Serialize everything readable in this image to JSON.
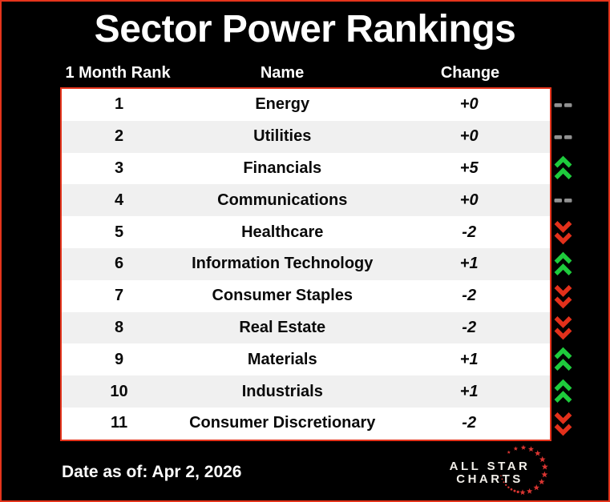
{
  "title": "Sector Power Rankings",
  "columns": {
    "rank": "1 Month Rank",
    "name": "Name",
    "change": "Change"
  },
  "rows": [
    {
      "rank": "1",
      "name": "Energy",
      "change": "+0",
      "direction": "flat"
    },
    {
      "rank": "2",
      "name": "Utilities",
      "change": "+0",
      "direction": "flat"
    },
    {
      "rank": "3",
      "name": "Financials",
      "change": "+5",
      "direction": "up"
    },
    {
      "rank": "4",
      "name": "Communications",
      "change": "+0",
      "direction": "flat"
    },
    {
      "rank": "5",
      "name": "Healthcare",
      "change": "-2",
      "direction": "down"
    },
    {
      "rank": "6",
      "name": "Information Technology",
      "change": "+1",
      "direction": "up"
    },
    {
      "rank": "7",
      "name": "Consumer Staples",
      "change": "-2",
      "direction": "down"
    },
    {
      "rank": "8",
      "name": "Real Estate",
      "change": "-2",
      "direction": "down"
    },
    {
      "rank": "9",
      "name": "Materials",
      "change": "+1",
      "direction": "up"
    },
    {
      "rank": "10",
      "name": "Industrials",
      "change": "+1",
      "direction": "up"
    },
    {
      "rank": "11",
      "name": "Consumer Discretionary",
      "change": "-2",
      "direction": "down"
    }
  ],
  "footer": {
    "date_label": "Date as of: Apr 2, 2026"
  },
  "logo": {
    "line1": "ALL STAR",
    "line2": "CHARTS"
  },
  "colors": {
    "accent_red": "#e5341c",
    "up_green": "#1ecb3c",
    "down_red": "#e3301b",
    "flat_gray": "#919191",
    "row_alt": "#f0f0f0",
    "star_red": "#da3531"
  },
  "icons": {
    "up": "double-chevron-up-icon",
    "down": "double-chevron-down-icon",
    "flat": "double-dash-icon"
  },
  "chart_data": {
    "type": "table",
    "title": "Sector Power Rankings",
    "columns": [
      "1 Month Rank",
      "Name",
      "Change"
    ],
    "rows": [
      [
        1,
        "Energy",
        "+0"
      ],
      [
        2,
        "Utilities",
        "+0"
      ],
      [
        3,
        "Financials",
        "+5"
      ],
      [
        4,
        "Communications",
        "+0"
      ],
      [
        5,
        "Healthcare",
        "-2"
      ],
      [
        6,
        "Information Technology",
        "+1"
      ],
      [
        7,
        "Consumer Staples",
        "-2"
      ],
      [
        8,
        "Real Estate",
        "-2"
      ],
      [
        9,
        "Materials",
        "+1"
      ],
      [
        10,
        "Industrials",
        "+1"
      ],
      [
        11,
        "Consumer Discretionary",
        "-2"
      ]
    ],
    "notes": "Change column direction indicators: flat(gray dashes)=rows 1,2,4; up(green double chevron)=rows 3,6,9,10; down(red double chevron)=rows 5,7,8,11",
    "footer_date": "Date as of: Apr 2, 2026"
  }
}
